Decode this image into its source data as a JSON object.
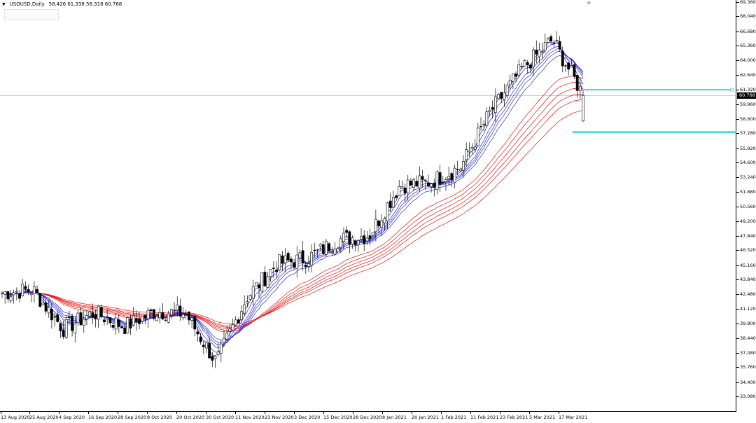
{
  "window": {
    "symbol": "USOUSD,Daily",
    "ohlc": "58.426 61.338 58.318 60.768"
  },
  "price_scale": {
    "labels": [
      "69.360",
      "68.040",
      "66.680",
      "65.360",
      "64.000",
      "62.640",
      "61.320",
      "59.960",
      "58.600",
      "57.280",
      "55.920",
      "54.600",
      "53.240",
      "51.880",
      "50.560",
      "49.200",
      "47.840",
      "46.520",
      "45.160",
      "43.840",
      "42.480",
      "41.120",
      "39.800",
      "38.440",
      "37.080",
      "35.760",
      "34.400",
      "33.080"
    ],
    "current_price": "60.768"
  },
  "time_scale": {
    "labels": [
      "13 Aug 2020",
      "25 Aug 2020",
      "4 Sep 2020",
      "16 Sep 2020",
      "28 Sep 2020",
      "8 Oct 2020",
      "20 Oct 2020",
      "30 Oct 2020",
      "11 Nov 2020",
      "23 Nov 2020",
      "3 Dec 2020",
      "15 Dec 2020",
      "28 Dec 2020",
      "8 Jan 2021",
      "20 Jan 2021",
      "1 Feb 2021",
      "11 Feb 2021",
      "23 Feb 2021",
      "5 Mar 2021",
      "17 Mar 2021"
    ]
  },
  "colors": {
    "candle": "#000000",
    "fast_ma": "#2a2ad8",
    "slow_ma": "#e81010",
    "level_lines": "#3dd6c8",
    "grid": "#c0c0c0"
  },
  "levels": {
    "resistance": 61.3,
    "support": 57.4
  },
  "chart_data": {
    "type": "candlestick",
    "title": "USOUSD,Daily",
    "ylim": [
      33.08,
      69.36
    ],
    "key_points": {
      "dates": [
        "13 Aug 2020",
        "25 Aug 2020",
        "4 Sep 2020",
        "16 Sep 2020",
        "28 Sep 2020",
        "8 Oct 2020",
        "20 Oct 2020",
        "30 Oct 2020",
        "11 Nov 2020",
        "23 Nov 2020",
        "3 Dec 2020",
        "15 Dec 2020",
        "28 Dec 2020",
        "8 Jan 2021",
        "20 Jan 2021",
        "1 Feb 2021",
        "11 Feb 2021",
        "23 Feb 2021",
        "5 Mar 2021",
        "17 Mar 2021"
      ],
      "close": [
        42.6,
        42.9,
        39.3,
        40.8,
        39.5,
        40.9,
        40.7,
        36.2,
        42.2,
        45.3,
        45.8,
        47.5,
        47.9,
        52.5,
        52.8,
        54.2,
        59.4,
        63.2,
        65.9,
        60.8
      ]
    },
    "last_candle": {
      "open": 58.426,
      "high": 61.338,
      "low": 58.318,
      "close": 60.768
    }
  }
}
